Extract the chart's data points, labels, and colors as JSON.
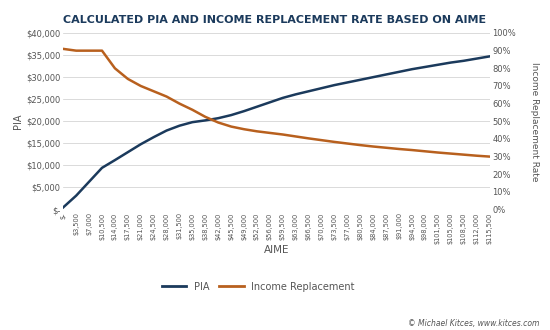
{
  "title": "CALCULATED PIA AND INCOME REPLACEMENT RATE BASED ON AIME",
  "xlabel": "AIME",
  "ylabel_left": "PIA",
  "ylabel_right": "Income Replacement Rate",
  "outer_bg_color": "#1b3a5c",
  "plot_bg_color": "#f0f0f0",
  "inner_bg_color": "#ffffff",
  "title_color": "#1b3a5c",
  "title_bg_color": "#e8eef4",
  "tick_label_color": "#555555",
  "grid_color": "#cccccc",
  "pia_color": "#1b3a5c",
  "replacement_color": "#b8601e",
  "aime_values": [
    0,
    3500,
    7000,
    10500,
    14000,
    17500,
    21000,
    24500,
    28000,
    31500,
    35000,
    38500,
    42000,
    45500,
    49000,
    52500,
    56000,
    59500,
    63000,
    66500,
    70000,
    73500,
    77000,
    80500,
    84000,
    87500,
    91000,
    94500,
    98000,
    101500,
    105000,
    108500,
    112000,
    115500
  ],
  "pia_values": [
    500,
    3150,
    6300,
    9450,
    11200,
    13000,
    14800,
    16400,
    17900,
    19000,
    19800,
    20200,
    20700,
    21400,
    22300,
    23300,
    24300,
    25300,
    26100,
    26800,
    27500,
    28200,
    28800,
    29400,
    30000,
    30600,
    31200,
    31800,
    32300,
    32800,
    33300,
    33700,
    34200,
    34700
  ],
  "replacement_values": [
    0.91,
    0.9,
    0.9,
    0.9,
    0.8,
    0.74,
    0.7,
    0.67,
    0.64,
    0.6,
    0.565,
    0.525,
    0.493,
    0.47,
    0.455,
    0.443,
    0.434,
    0.425,
    0.414,
    0.403,
    0.393,
    0.383,
    0.374,
    0.365,
    0.357,
    0.35,
    0.343,
    0.337,
    0.33,
    0.323,
    0.317,
    0.311,
    0.305,
    0.3
  ],
  "xtick_labels": [
    "$-",
    "$3,500",
    "$7,000",
    "$10,500",
    "$14,000",
    "$17,500",
    "$21,000",
    "$24,500",
    "$28,000",
    "$31,500",
    "$35,000",
    "$38,500",
    "$42,000",
    "$45,500",
    "$49,000",
    "$52,500",
    "$56,000",
    "$59,500",
    "$63,000",
    "$66,500",
    "$70,000",
    "$73,500",
    "$77,000",
    "$80,500",
    "$84,000",
    "$87,500",
    "$91,000",
    "$94,500",
    "$98,000",
    "$101,500",
    "$105,000",
    "$108,500",
    "$112,000",
    "$115,500"
  ],
  "yticks_left": [
    0,
    5000,
    10000,
    15000,
    20000,
    25000,
    30000,
    35000,
    40000
  ],
  "ytick_labels_left": [
    "$-",
    "$5,000",
    "$10,000",
    "$15,000",
    "$20,000",
    "$25,000",
    "$30,000",
    "$35,000",
    "$40,000"
  ],
  "yticks_right": [
    0.0,
    0.1,
    0.2,
    0.3,
    0.4,
    0.5,
    0.6,
    0.7,
    0.8,
    0.9,
    1.0
  ],
  "ytick_labels_right": [
    "0%",
    "10%",
    "20%",
    "30%",
    "40%",
    "50%",
    "60%",
    "70%",
    "80%",
    "90%",
    "100%"
  ],
  "legend_pia": "PIA",
  "legend_replacement": "Income Replacement",
  "watermark": "© Michael Kitces, www.kitces.com"
}
